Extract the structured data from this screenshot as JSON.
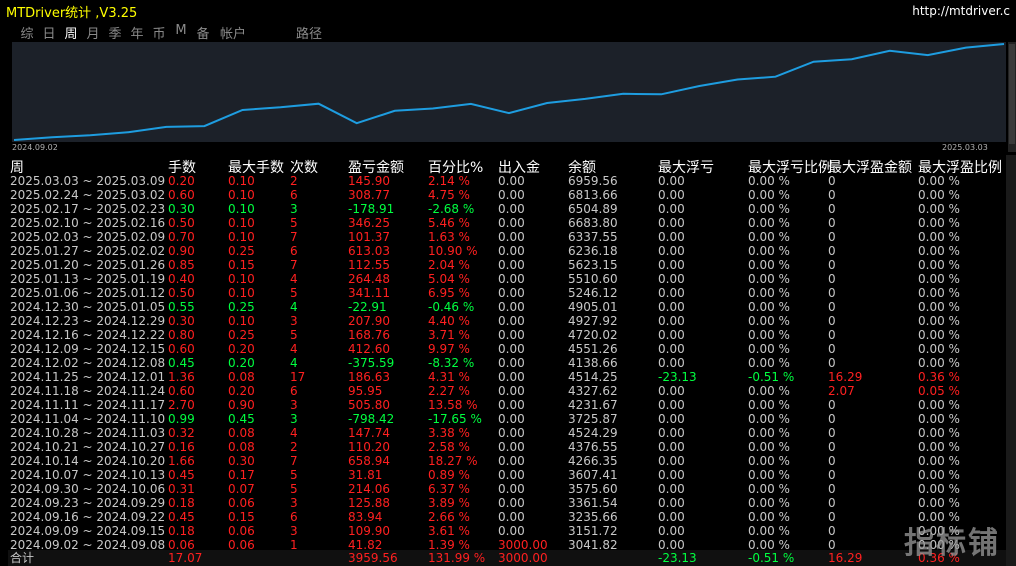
{
  "window": {
    "title": "MTDriver统计 ,V3.25",
    "url": "http://mtdriver.c"
  },
  "tabs": [
    {
      "label": "综",
      "active": false
    },
    {
      "label": "日",
      "active": false
    },
    {
      "label": "周",
      "active": true
    },
    {
      "label": "月",
      "active": false
    },
    {
      "label": "季",
      "active": false
    },
    {
      "label": "年",
      "active": false
    },
    {
      "label": "币",
      "active": false
    },
    {
      "label": "M",
      "active": false
    },
    {
      "label": "备",
      "active": false
    },
    {
      "label": "帐户",
      "active": false
    },
    {
      "label": "路径",
      "active": false
    }
  ],
  "chart": {
    "start_label": "2024.09.02",
    "end_label": "2025.03.03",
    "line_color": "#1e9de0",
    "balance_series": [
      3041.82,
      3151.72,
      3235.66,
      3361.54,
      3575.6,
      3607.41,
      4266.35,
      4376.55,
      4524.29,
      3725.87,
      4231.67,
      4327.62,
      4514.25,
      4138.66,
      4551.26,
      4720.02,
      4927.92,
      4905.01,
      5246.12,
      5510.6,
      5623.15,
      6236.18,
      6337.55,
      6683.8,
      6504.89,
      6813.66,
      6959.56
    ]
  },
  "table": {
    "headers": {
      "week": "周",
      "lots": "手数",
      "max_lots": "最大手数",
      "count": "次数",
      "profit": "盈亏金额",
      "percent": "百分比%",
      "deposit": "出入金",
      "balance": "余额",
      "max_float_loss": "最大浮亏",
      "max_float_loss_pct": "最大浮亏比例",
      "max_float_profit": "最大浮盈金额",
      "max_float_profit_pct": "最大浮盈比例"
    },
    "rows": [
      {
        "week": "2025.03.03 ~ 2025.03.09",
        "lots": "0.20",
        "max_lots": "0.10",
        "count": "2",
        "profit": "145.90",
        "percent": "2.14 %",
        "deposit": "0.00",
        "balance": "6959.56",
        "mfl": "0.00",
        "mflp": "0.00 %",
        "mfp": "0",
        "mfpp": "0.00 %",
        "status": "red"
      },
      {
        "week": "2025.02.24 ~ 2025.03.02",
        "lots": "0.60",
        "max_lots": "0.10",
        "count": "6",
        "profit": "308.77",
        "percent": "4.75 %",
        "deposit": "0.00",
        "balance": "6813.66",
        "mfl": "0.00",
        "mflp": "0.00 %",
        "mfp": "0",
        "mfpp": "0.00 %",
        "status": "red"
      },
      {
        "week": "2025.02.17 ~ 2025.02.23",
        "lots": "0.30",
        "max_lots": "0.10",
        "count": "3",
        "profit": "-178.91",
        "percent": "-2.68 %",
        "deposit": "0.00",
        "balance": "6504.89",
        "mfl": "0.00",
        "mflp": "0.00 %",
        "mfp": "0",
        "mfpp": "0.00 %",
        "status": "green"
      },
      {
        "week": "2025.02.10 ~ 2025.02.16",
        "lots": "0.50",
        "max_lots": "0.10",
        "count": "5",
        "profit": "346.25",
        "percent": "5.46 %",
        "deposit": "0.00",
        "balance": "6683.80",
        "mfl": "0.00",
        "mflp": "0.00 %",
        "mfp": "0",
        "mfpp": "0.00 %",
        "status": "red"
      },
      {
        "week": "2025.02.03 ~ 2025.02.09",
        "lots": "0.70",
        "max_lots": "0.10",
        "count": "7",
        "profit": "101.37",
        "percent": "1.63 %",
        "deposit": "0.00",
        "balance": "6337.55",
        "mfl": "0.00",
        "mflp": "0.00 %",
        "mfp": "0",
        "mfpp": "0.00 %",
        "status": "red"
      },
      {
        "week": "2025.01.27 ~ 2025.02.02",
        "lots": "0.90",
        "max_lots": "0.25",
        "count": "6",
        "profit": "613.03",
        "percent": "10.90 %",
        "deposit": "0.00",
        "balance": "6236.18",
        "mfl": "0.00",
        "mflp": "0.00 %",
        "mfp": "0",
        "mfpp": "0.00 %",
        "status": "red"
      },
      {
        "week": "2025.01.20 ~ 2025.01.26",
        "lots": "0.85",
        "max_lots": "0.15",
        "count": "7",
        "profit": "112.55",
        "percent": "2.04 %",
        "deposit": "0.00",
        "balance": "5623.15",
        "mfl": "0.00",
        "mflp": "0.00 %",
        "mfp": "0",
        "mfpp": "0.00 %",
        "status": "red"
      },
      {
        "week": "2025.01.13 ~ 2025.01.19",
        "lots": "0.40",
        "max_lots": "0.10",
        "count": "4",
        "profit": "264.48",
        "percent": "5.04 %",
        "deposit": "0.00",
        "balance": "5510.60",
        "mfl": "0.00",
        "mflp": "0.00 %",
        "mfp": "0",
        "mfpp": "0.00 %",
        "status": "red"
      },
      {
        "week": "2025.01.06 ~ 2025.01.12",
        "lots": "0.50",
        "max_lots": "0.10",
        "count": "5",
        "profit": "341.11",
        "percent": "6.95 %",
        "deposit": "0.00",
        "balance": "5246.12",
        "mfl": "0.00",
        "mflp": "0.00 %",
        "mfp": "0",
        "mfpp": "0.00 %",
        "status": "red"
      },
      {
        "week": "2024.12.30 ~ 2025.01.05",
        "lots": "0.55",
        "max_lots": "0.25",
        "count": "4",
        "profit": "-22.91",
        "percent": "-0.46 %",
        "deposit": "0.00",
        "balance": "4905.01",
        "mfl": "0.00",
        "mflp": "0.00 %",
        "mfp": "0",
        "mfpp": "0.00 %",
        "status": "green"
      },
      {
        "week": "2024.12.23 ~ 2024.12.29",
        "lots": "0.30",
        "max_lots": "0.10",
        "count": "3",
        "profit": "207.90",
        "percent": "4.40 %",
        "deposit": "0.00",
        "balance": "4927.92",
        "mfl": "0.00",
        "mflp": "0.00 %",
        "mfp": "0",
        "mfpp": "0.00 %",
        "status": "red"
      },
      {
        "week": "2024.12.16 ~ 2024.12.22",
        "lots": "0.80",
        "max_lots": "0.25",
        "count": "5",
        "profit": "168.76",
        "percent": "3.71 %",
        "deposit": "0.00",
        "balance": "4720.02",
        "mfl": "0.00",
        "mflp": "0.00 %",
        "mfp": "0",
        "mfpp": "0.00 %",
        "status": "red"
      },
      {
        "week": "2024.12.09 ~ 2024.12.15",
        "lots": "0.60",
        "max_lots": "0.20",
        "count": "4",
        "profit": "412.60",
        "percent": "9.97 %",
        "deposit": "0.00",
        "balance": "4551.26",
        "mfl": "0.00",
        "mflp": "0.00 %",
        "mfp": "0",
        "mfpp": "0.00 %",
        "status": "red"
      },
      {
        "week": "2024.12.02 ~ 2024.12.08",
        "lots": "0.45",
        "max_lots": "0.20",
        "count": "4",
        "profit": "-375.59",
        "percent": "-8.32 %",
        "deposit": "0.00",
        "balance": "4138.66",
        "mfl": "0.00",
        "mflp": "0.00 %",
        "mfp": "0",
        "mfpp": "0.00 %",
        "status": "green"
      },
      {
        "week": "2024.11.25 ~ 2024.12.01",
        "lots": "1.36",
        "max_lots": "0.08",
        "count": "17",
        "profit": "186.63",
        "percent": "4.31 %",
        "deposit": "0.00",
        "balance": "4514.25",
        "mfl": "-23.13",
        "mflp": "-0.51 %",
        "mfp": "16.29",
        "mfpp": "0.36 %",
        "status": "red",
        "float_loss": true,
        "float_profit": true
      },
      {
        "week": "2024.11.18 ~ 2024.11.24",
        "lots": "0.60",
        "max_lots": "0.20",
        "count": "6",
        "profit": "95.95",
        "percent": "2.27 %",
        "deposit": "0.00",
        "balance": "4327.62",
        "mfl": "0.00",
        "mflp": "0.00 %",
        "mfp": "2.07",
        "mfpp": "0.05 %",
        "status": "red",
        "float_profit": true
      },
      {
        "week": "2024.11.11 ~ 2024.11.17",
        "lots": "2.70",
        "max_lots": "0.90",
        "count": "3",
        "profit": "505.80",
        "percent": "13.58 %",
        "deposit": "0.00",
        "balance": "4231.67",
        "mfl": "0.00",
        "mflp": "0.00 %",
        "mfp": "0",
        "mfpp": "0.00 %",
        "status": "red"
      },
      {
        "week": "2024.11.04 ~ 2024.11.10",
        "lots": "0.99",
        "max_lots": "0.45",
        "count": "3",
        "profit": "-798.42",
        "percent": "-17.65 %",
        "deposit": "0.00",
        "balance": "3725.87",
        "mfl": "0.00",
        "mflp": "0.00 %",
        "mfp": "0",
        "mfpp": "0.00 %",
        "status": "green"
      },
      {
        "week": "2024.10.28 ~ 2024.11.03",
        "lots": "0.32",
        "max_lots": "0.08",
        "count": "4",
        "profit": "147.74",
        "percent": "3.38 %",
        "deposit": "0.00",
        "balance": "4524.29",
        "mfl": "0.00",
        "mflp": "0.00 %",
        "mfp": "0",
        "mfpp": "0.00 %",
        "status": "red"
      },
      {
        "week": "2024.10.21 ~ 2024.10.27",
        "lots": "0.16",
        "max_lots": "0.08",
        "count": "2",
        "profit": "110.20",
        "percent": "2.58 %",
        "deposit": "0.00",
        "balance": "4376.55",
        "mfl": "0.00",
        "mflp": "0.00 %",
        "mfp": "0",
        "mfpp": "0.00 %",
        "status": "red"
      },
      {
        "week": "2024.10.14 ~ 2024.10.20",
        "lots": "1.66",
        "max_lots": "0.30",
        "count": "7",
        "profit": "658.94",
        "percent": "18.27 %",
        "deposit": "0.00",
        "balance": "4266.35",
        "mfl": "0.00",
        "mflp": "0.00 %",
        "mfp": "0",
        "mfpp": "0.00 %",
        "status": "red"
      },
      {
        "week": "2024.10.07 ~ 2024.10.13",
        "lots": "0.45",
        "max_lots": "0.17",
        "count": "5",
        "profit": "31.81",
        "percent": "0.89 %",
        "deposit": "0.00",
        "balance": "3607.41",
        "mfl": "0.00",
        "mflp": "0.00 %",
        "mfp": "0",
        "mfpp": "0.00 %",
        "status": "red"
      },
      {
        "week": "2024.09.30 ~ 2024.10.06",
        "lots": "0.31",
        "max_lots": "0.07",
        "count": "5",
        "profit": "214.06",
        "percent": "6.37 %",
        "deposit": "0.00",
        "balance": "3575.60",
        "mfl": "0.00",
        "mflp": "0.00 %",
        "mfp": "0",
        "mfpp": "0.00 %",
        "status": "red"
      },
      {
        "week": "2024.09.23 ~ 2024.09.29",
        "lots": "0.18",
        "max_lots": "0.06",
        "count": "3",
        "profit": "125.88",
        "percent": "3.89 %",
        "deposit": "0.00",
        "balance": "3361.54",
        "mfl": "0.00",
        "mflp": "0.00 %",
        "mfp": "0",
        "mfpp": "0.00 %",
        "status": "red"
      },
      {
        "week": "2024.09.16 ~ 2024.09.22",
        "lots": "0.45",
        "max_lots": "0.15",
        "count": "6",
        "profit": "83.94",
        "percent": "2.66 %",
        "deposit": "0.00",
        "balance": "3235.66",
        "mfl": "0.00",
        "mflp": "0.00 %",
        "mfp": "0",
        "mfpp": "0.00 %",
        "status": "red"
      },
      {
        "week": "2024.09.09 ~ 2024.09.15",
        "lots": "0.18",
        "max_lots": "0.06",
        "count": "3",
        "profit": "109.90",
        "percent": "3.61 %",
        "deposit": "0.00",
        "balance": "3151.72",
        "mfl": "0.00",
        "mflp": "0.00 %",
        "mfp": "0",
        "mfpp": "0.00 %",
        "status": "red"
      },
      {
        "week": "2024.09.02 ~ 2024.09.08",
        "lots": "0.06",
        "max_lots": "0.06",
        "count": "1",
        "profit": "41.82",
        "percent": "1.39 %",
        "deposit": "3000.00",
        "balance": "3041.82",
        "mfl": "0.00",
        "mflp": "0.00 %",
        "mfp": "0",
        "mfpp": "0.00 %",
        "status": "red",
        "deposit_red": true
      }
    ],
    "total": {
      "label": "合计",
      "lots": "17.07",
      "profit": "3959.56",
      "percent": "131.99 %",
      "deposit": "3000.00",
      "mfl": "-23.13",
      "mflp": "-0.51 %",
      "mfp": "16.29",
      "mfpp": "0.36 %"
    }
  },
  "watermark": "指标铺"
}
